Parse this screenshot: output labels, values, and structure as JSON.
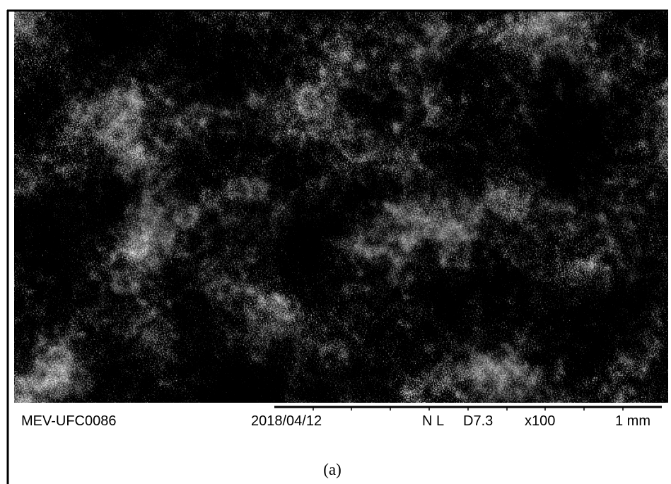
{
  "databar": {
    "id": "MEV-UFC0086",
    "date": "2018/04/12",
    "mode": "N L",
    "distance": "D7.3",
    "magnification": "x100",
    "scale": "1 mm"
  },
  "caption": "(a)"
}
